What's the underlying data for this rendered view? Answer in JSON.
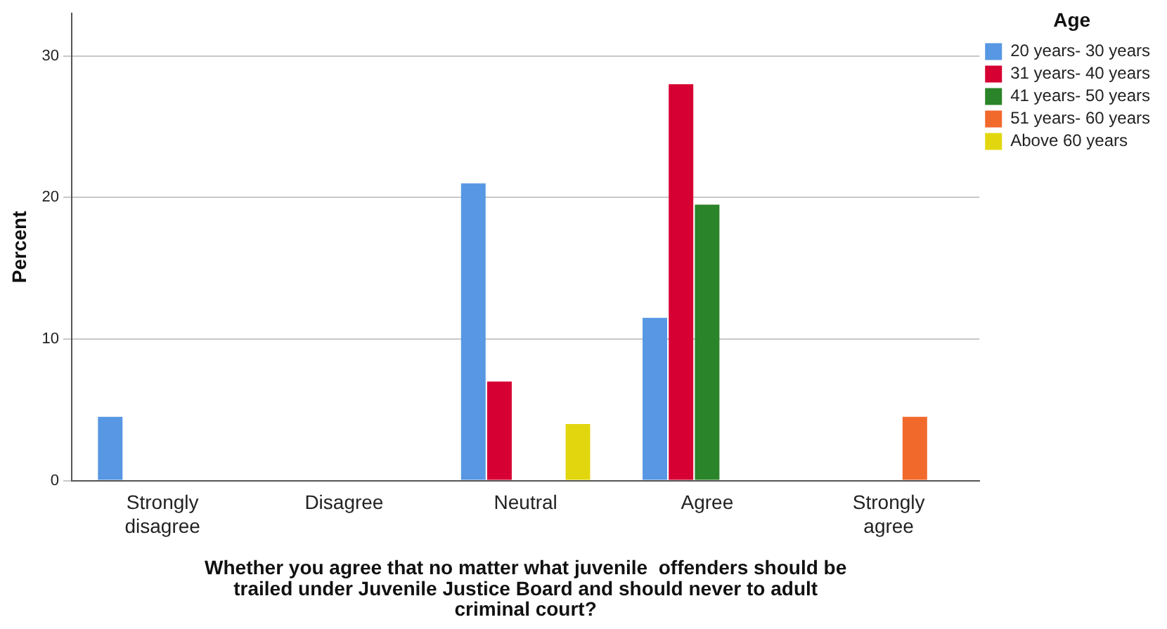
{
  "chart_data": {
    "type": "bar",
    "xlabel": "Whether you agree that no matter what juvenile  offenders should be trailed under Juvenile Justice Board and should never to adult criminal court?",
    "ylabel": "Percent",
    "legend_title": "Age",
    "categories": [
      "Strongly disagree",
      "Disagree",
      "Neutral",
      "Agree",
      "Strongly agree"
    ],
    "series": [
      {
        "name": "20 years- 30 years",
        "color": "#5797e3",
        "values": [
          4.5,
          null,
          21,
          11.5,
          null
        ]
      },
      {
        "name": "31 years- 40 years",
        "color": "#d60032",
        "values": [
          null,
          null,
          7,
          28,
          null
        ]
      },
      {
        "name": "41 years- 50 years",
        "color": "#2a8429",
        "values": [
          null,
          null,
          null,
          19.5,
          null
        ]
      },
      {
        "name": "51 years- 60 years",
        "color": "#f2692c",
        "values": [
          null,
          null,
          null,
          null,
          4.5
        ]
      },
      {
        "name": "Above 60 years",
        "color": "#e2d70f",
        "values": [
          null,
          null,
          4,
          null,
          null
        ]
      }
    ],
    "ylim": [
      0,
      33
    ],
    "yticks": [
      0,
      10,
      20,
      30
    ],
    "grid": "y",
    "legend": "top right"
  }
}
